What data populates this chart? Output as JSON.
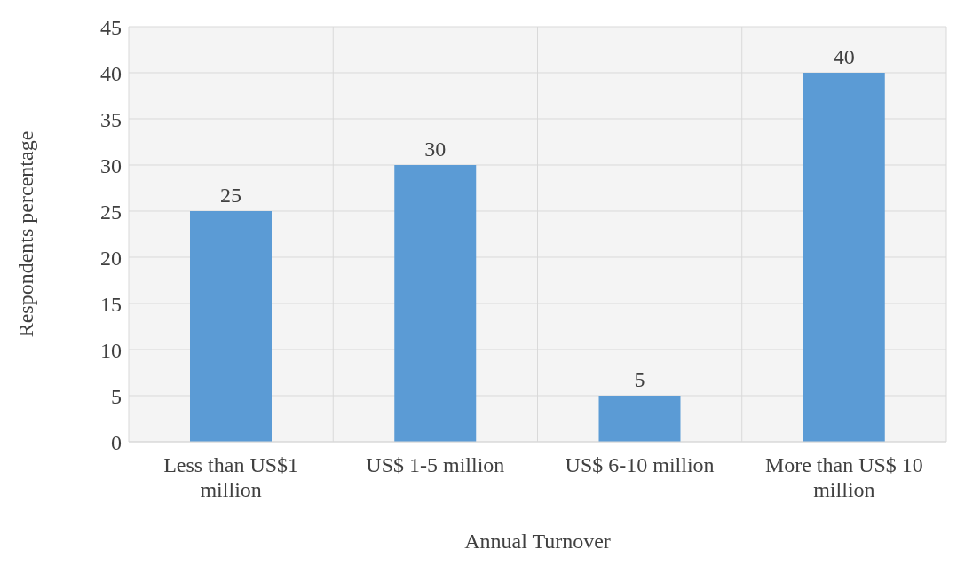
{
  "chart_data": {
    "type": "bar",
    "xlabel": "Annual Turnover",
    "ylabel": "Respondents percentage",
    "categories": [
      "Less than US$1 million",
      "US$ 1-5 million",
      "US$ 6-10 million",
      "More than US$ 10 million"
    ],
    "values": [
      25,
      30,
      5,
      40
    ],
    "color": "#5b9bd5",
    "ylim": [
      0,
      45
    ],
    "yticks": [
      0,
      5,
      10,
      15,
      20,
      25,
      30,
      35,
      40,
      45
    ],
    "grid": true,
    "data_labels": true
  }
}
